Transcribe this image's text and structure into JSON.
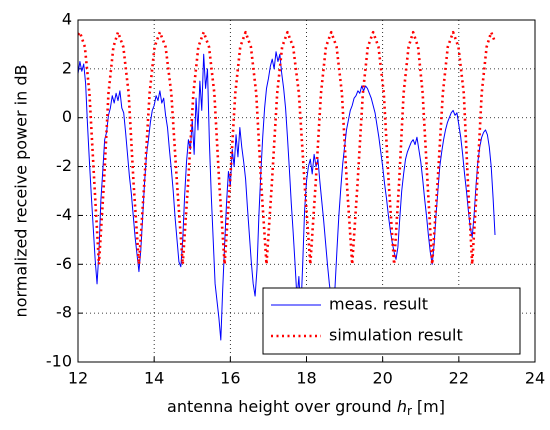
{
  "chart_data": {
    "type": "line",
    "y_label": "normalized receive power in dB",
    "x_label": {
      "text": "antenna height over ground",
      "symbol": "h",
      "subscript": "r",
      "unit": "[m]"
    },
    "xlim": [
      12,
      24
    ],
    "xticks": [
      12,
      14,
      16,
      18,
      20,
      22,
      24
    ],
    "ylim": [
      -10,
      4
    ],
    "yticks": [
      -10,
      -8,
      -6,
      -4,
      -2,
      0,
      2,
      4
    ],
    "grid": true,
    "legend": "lower right",
    "series": [
      {
        "name": "meas. result",
        "color": "#0000ff",
        "style": "solid",
        "x": [
          12,
          12.05,
          12.1,
          12.15,
          12.2,
          12.25,
          12.3,
          12.35,
          12.4,
          12.45,
          12.5,
          12.55,
          12.6,
          12.65,
          12.7,
          12.75,
          12.8,
          12.85,
          12.9,
          12.95,
          13,
          13.05,
          13.1,
          13.15,
          13.2,
          13.25,
          13.3,
          13.35,
          13.4,
          13.45,
          13.5,
          13.55,
          13.6,
          13.65,
          13.7,
          13.75,
          13.8,
          13.85,
          13.9,
          13.95,
          14,
          14.05,
          14.1,
          14.15,
          14.2,
          14.25,
          14.3,
          14.35,
          14.4,
          14.45,
          14.5,
          14.55,
          14.6,
          14.65,
          14.7,
          14.75,
          14.8,
          14.85,
          14.9,
          14.95,
          15,
          15.05,
          15.1,
          15.15,
          15.2,
          15.25,
          15.3,
          15.35,
          15.4,
          15.45,
          15.5,
          15.55,
          15.6,
          15.65,
          15.7,
          15.75,
          15.8,
          15.85,
          15.9,
          15.95,
          16,
          16.05,
          16.1,
          16.15,
          16.2,
          16.25,
          16.3,
          16.35,
          16.4,
          16.45,
          16.5,
          16.55,
          16.6,
          16.65,
          16.7,
          16.75,
          16.8,
          16.85,
          16.9,
          16.95,
          17,
          17.05,
          17.1,
          17.15,
          17.2,
          17.25,
          17.3,
          17.35,
          17.4,
          17.45,
          17.5,
          17.55,
          17.6,
          17.65,
          17.7,
          17.75,
          17.8,
          17.85,
          17.9,
          17.95,
          18,
          18.05,
          18.1,
          18.15,
          18.2,
          18.25,
          18.3,
          18.35,
          18.4,
          18.45,
          18.5,
          18.55,
          18.6,
          18.65,
          18.7,
          18.75,
          18.8,
          18.85,
          18.9,
          18.95,
          19,
          19.05,
          19.1,
          19.15,
          19.2,
          19.25,
          19.3,
          19.35,
          19.4,
          19.45,
          19.5,
          19.55,
          19.6,
          19.65,
          19.7,
          19.75,
          19.8,
          19.85,
          19.9,
          19.95,
          20,
          20.05,
          20.1,
          20.15,
          20.2,
          20.25,
          20.3,
          20.35,
          20.4,
          20.45,
          20.5,
          20.55,
          20.6,
          20.65,
          20.7,
          20.75,
          20.8,
          20.85,
          20.9,
          20.95,
          21,
          21.05,
          21.1,
          21.15,
          21.2,
          21.25,
          21.3,
          21.35,
          21.4,
          21.45,
          21.5,
          21.55,
          21.6,
          21.65,
          21.7,
          21.75,
          21.8,
          21.85,
          21.9,
          21.95,
          22,
          22.05,
          22.1,
          22.15,
          22.2,
          22.25,
          22.3,
          22.35,
          22.4,
          22.45,
          22.5,
          22.55,
          22.6,
          22.65,
          22.7,
          22.75,
          22.8,
          22.85,
          22.9,
          22.95
        ],
        "values": [
          1.8,
          2.3,
          1.9,
          2.2,
          1.4,
          -0.3,
          -1.8,
          -3.2,
          -4.5,
          -5.8,
          -6.8,
          -5.5,
          -3.4,
          -2.2,
          -0.9,
          -0.6,
          0.1,
          0.4,
          0.9,
          0.6,
          1.0,
          0.7,
          1.1,
          0.4,
          0.2,
          -0.6,
          -1.5,
          -2.4,
          -3.1,
          -4.0,
          -4.9,
          -5.6,
          -6.3,
          -5.4,
          -4.0,
          -2.6,
          -1.5,
          -0.9,
          -0.2,
          0.3,
          0.5,
          0.9,
          0.7,
          1.1,
          0.6,
          0.8,
          0.1,
          -0.4,
          -1.3,
          -2.1,
          -3.0,
          -4.1,
          -5.0,
          -5.9,
          -6.1,
          -5.0,
          -3.2,
          -1.8,
          -0.9,
          -1.3,
          -0.1,
          -1.5,
          0.8,
          -0.5,
          1.5,
          0.3,
          2.6,
          1.2,
          2.0,
          -1.0,
          -3.2,
          -5.0,
          -6.8,
          -7.5,
          -8.2,
          -9.1,
          -7.0,
          -5.2,
          -3.5,
          -2.2,
          -2.8,
          -1.3,
          -2.0,
          -0.7,
          -1.6,
          -0.4,
          -1.2,
          -1.8,
          -2.5,
          -3.7,
          -4.8,
          -5.9,
          -6.8,
          -7.3,
          -6.2,
          -4.0,
          -2.3,
          -0.8,
          0.4,
          1.2,
          1.6,
          2.1,
          2.4,
          2.0,
          2.7,
          2.3,
          2.6,
          1.8,
          1.2,
          0.4,
          -0.8,
          -2.1,
          -3.5,
          -4.7,
          -6.0,
          -7.4,
          -6.5,
          -8.0,
          -6.0,
          -3.8,
          -2.6,
          -2.0,
          -1.7,
          -2.3,
          -1.5,
          -2.0,
          -1.7,
          -2.6,
          -3.4,
          -4.2,
          -5.1,
          -6.0,
          -6.8,
          -7.4,
          -7.8,
          -6.9,
          -5.4,
          -4.0,
          -2.9,
          -1.9,
          -1.2,
          -0.5,
          -0.1,
          0.3,
          0.5,
          0.8,
          0.9,
          1.1,
          1.0,
          1.3,
          1.1,
          1.3,
          1.2,
          1.0,
          0.8,
          0.5,
          0.2,
          -0.3,
          -0.8,
          -1.4,
          -2.0,
          -2.7,
          -3.3,
          -4.0,
          -4.6,
          -5.1,
          -5.5,
          -5.8,
          -5.3,
          -4.1,
          -3.0,
          -2.3,
          -1.7,
          -1.4,
          -1.2,
          -1.0,
          -0.9,
          -1.1,
          -0.8,
          -1.3,
          -1.8,
          -2.5,
          -3.3,
          -4.0,
          -4.8,
          -5.5,
          -6.0,
          -5.2,
          -4.0,
          -3.0,
          -2.0,
          -1.4,
          -0.9,
          -0.5,
          -0.2,
          0.0,
          0.2,
          0.3,
          0.1,
          0.2,
          -0.3,
          -0.8,
          -1.5,
          -2.3,
          -3.0,
          -3.8,
          -4.5,
          -4.9,
          -4.0,
          -2.8,
          -1.8,
          -1.2,
          -0.8,
          -0.6,
          -0.5,
          -0.7,
          -1.2,
          -2.0,
          -3.3,
          -4.8
        ]
      },
      {
        "name": "simulation result",
        "color": "#ff0000",
        "style": "dotted",
        "x": [
          12,
          12.05,
          12.18,
          12.3,
          12.43,
          12.55,
          12.68,
          12.8,
          12.93,
          13.05,
          13.19,
          13.33,
          13.46,
          13.6,
          13.74,
          13.88,
          14.01,
          14.15,
          14.3,
          14.45,
          14.6,
          14.75,
          14.89,
          15.03,
          15.16,
          15.3,
          15.44,
          15.58,
          15.71,
          15.85,
          15.99,
          16.13,
          16.26,
          16.4,
          16.54,
          16.68,
          16.81,
          16.95,
          17.09,
          17.23,
          17.36,
          17.5,
          17.65,
          17.8,
          17.95,
          18.1,
          18.24,
          18.38,
          18.51,
          18.65,
          18.79,
          18.93,
          19.06,
          19.2,
          19.34,
          19.48,
          19.61,
          19.75,
          19.89,
          20.03,
          20.16,
          20.3,
          20.43,
          20.55,
          20.68,
          20.8,
          20.93,
          21.05,
          21.18,
          21.3,
          21.44,
          21.58,
          21.71,
          21.85,
          21.99,
          22.13,
          22.24,
          22.35,
          22.48,
          22.6,
          22.73,
          22.85,
          22.95
        ],
        "values": [
          3.4,
          3.5,
          2.9,
          1.0,
          -2.7,
          -6,
          -2.7,
          1.0,
          2.9,
          3.5,
          2.9,
          1.0,
          -2.7,
          -6,
          -2.7,
          1.0,
          2.9,
          3.5,
          2.9,
          1.0,
          -2.7,
          -6,
          -2.7,
          1.0,
          2.9,
          3.5,
          2.9,
          1.0,
          -2.7,
          -6,
          -2.7,
          1.0,
          2.9,
          3.5,
          2.9,
          1.0,
          -2.7,
          -6,
          -2.7,
          1.0,
          2.9,
          3.5,
          2.9,
          1.0,
          -2.7,
          -6,
          -2.7,
          1.0,
          2.9,
          3.5,
          2.9,
          1.0,
          -2.7,
          -6,
          -2.7,
          1.0,
          2.9,
          3.5,
          2.9,
          1.0,
          -2.7,
          -6,
          -2.7,
          1.0,
          2.9,
          3.5,
          2.9,
          1.0,
          -2.7,
          -6,
          -2.7,
          1.0,
          2.9,
          3.5,
          2.9,
          1.0,
          -2.7,
          -6,
          -2.7,
          1.0,
          2.9,
          3.5,
          3.1
        ]
      }
    ]
  }
}
